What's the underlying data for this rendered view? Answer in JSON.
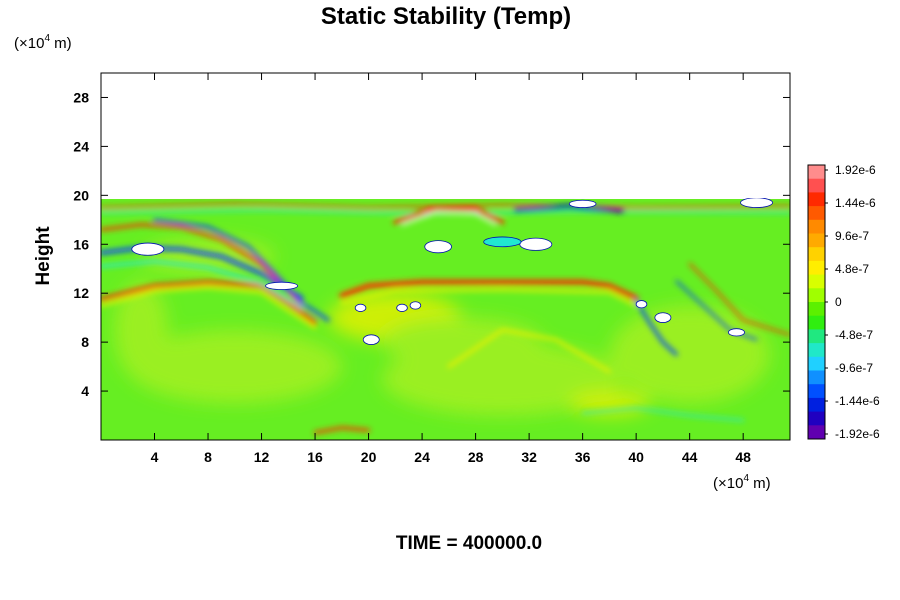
{
  "chart_data": {
    "type": "heatmap",
    "title": "Static Stability (Temp)",
    "ylabel": "Height",
    "xlabel": "",
    "x_unit": "(×10",
    "x_unit_exp": "4",
    "x_unit_tail": " m)",
    "y_unit": "(×10",
    "y_unit_exp": "4",
    "y_unit_tail": " m)",
    "xlim": [
      0,
      51.5
    ],
    "ylim": [
      0,
      30
    ],
    "x_ticks": [
      4,
      8,
      12,
      16,
      20,
      24,
      28,
      32,
      36,
      40,
      44,
      48
    ],
    "y_ticks": [
      4,
      8,
      12,
      16,
      20,
      24,
      28
    ],
    "data_top": 19.7,
    "colorbar": {
      "labels": [
        "1.92e-6",
        "1.44e-6",
        "9.6e-7",
        "4.8e-7",
        "0",
        "-4.8e-7",
        "-9.6e-7",
        "-1.44e-6",
        "-1.92e-6"
      ],
      "colors": [
        "#ff8c8c",
        "#ff5050",
        "#ff2a00",
        "#ff5a00",
        "#ff8a00",
        "#ffaa00",
        "#ffd200",
        "#ffee00",
        "#d8ff00",
        "#a0ff00",
        "#5cf000",
        "#30ee10",
        "#20e880",
        "#20e8c8",
        "#20d0ff",
        "#1090ff",
        "#0050ff",
        "#0020e0",
        "#2000c0",
        "#6000b0"
      ]
    },
    "field_colors": {
      "background": "#66ee22",
      "light": "#a8f020",
      "yellow": "#e8f000",
      "orange": "#ff9000",
      "red": "#ff2a00",
      "cyan": "#20e8d0",
      "blue": "#1040ff",
      "navy": "#0010b0",
      "white": "#ffffff"
    }
  },
  "footer": {
    "time_label": "TIME = 400000.0"
  }
}
